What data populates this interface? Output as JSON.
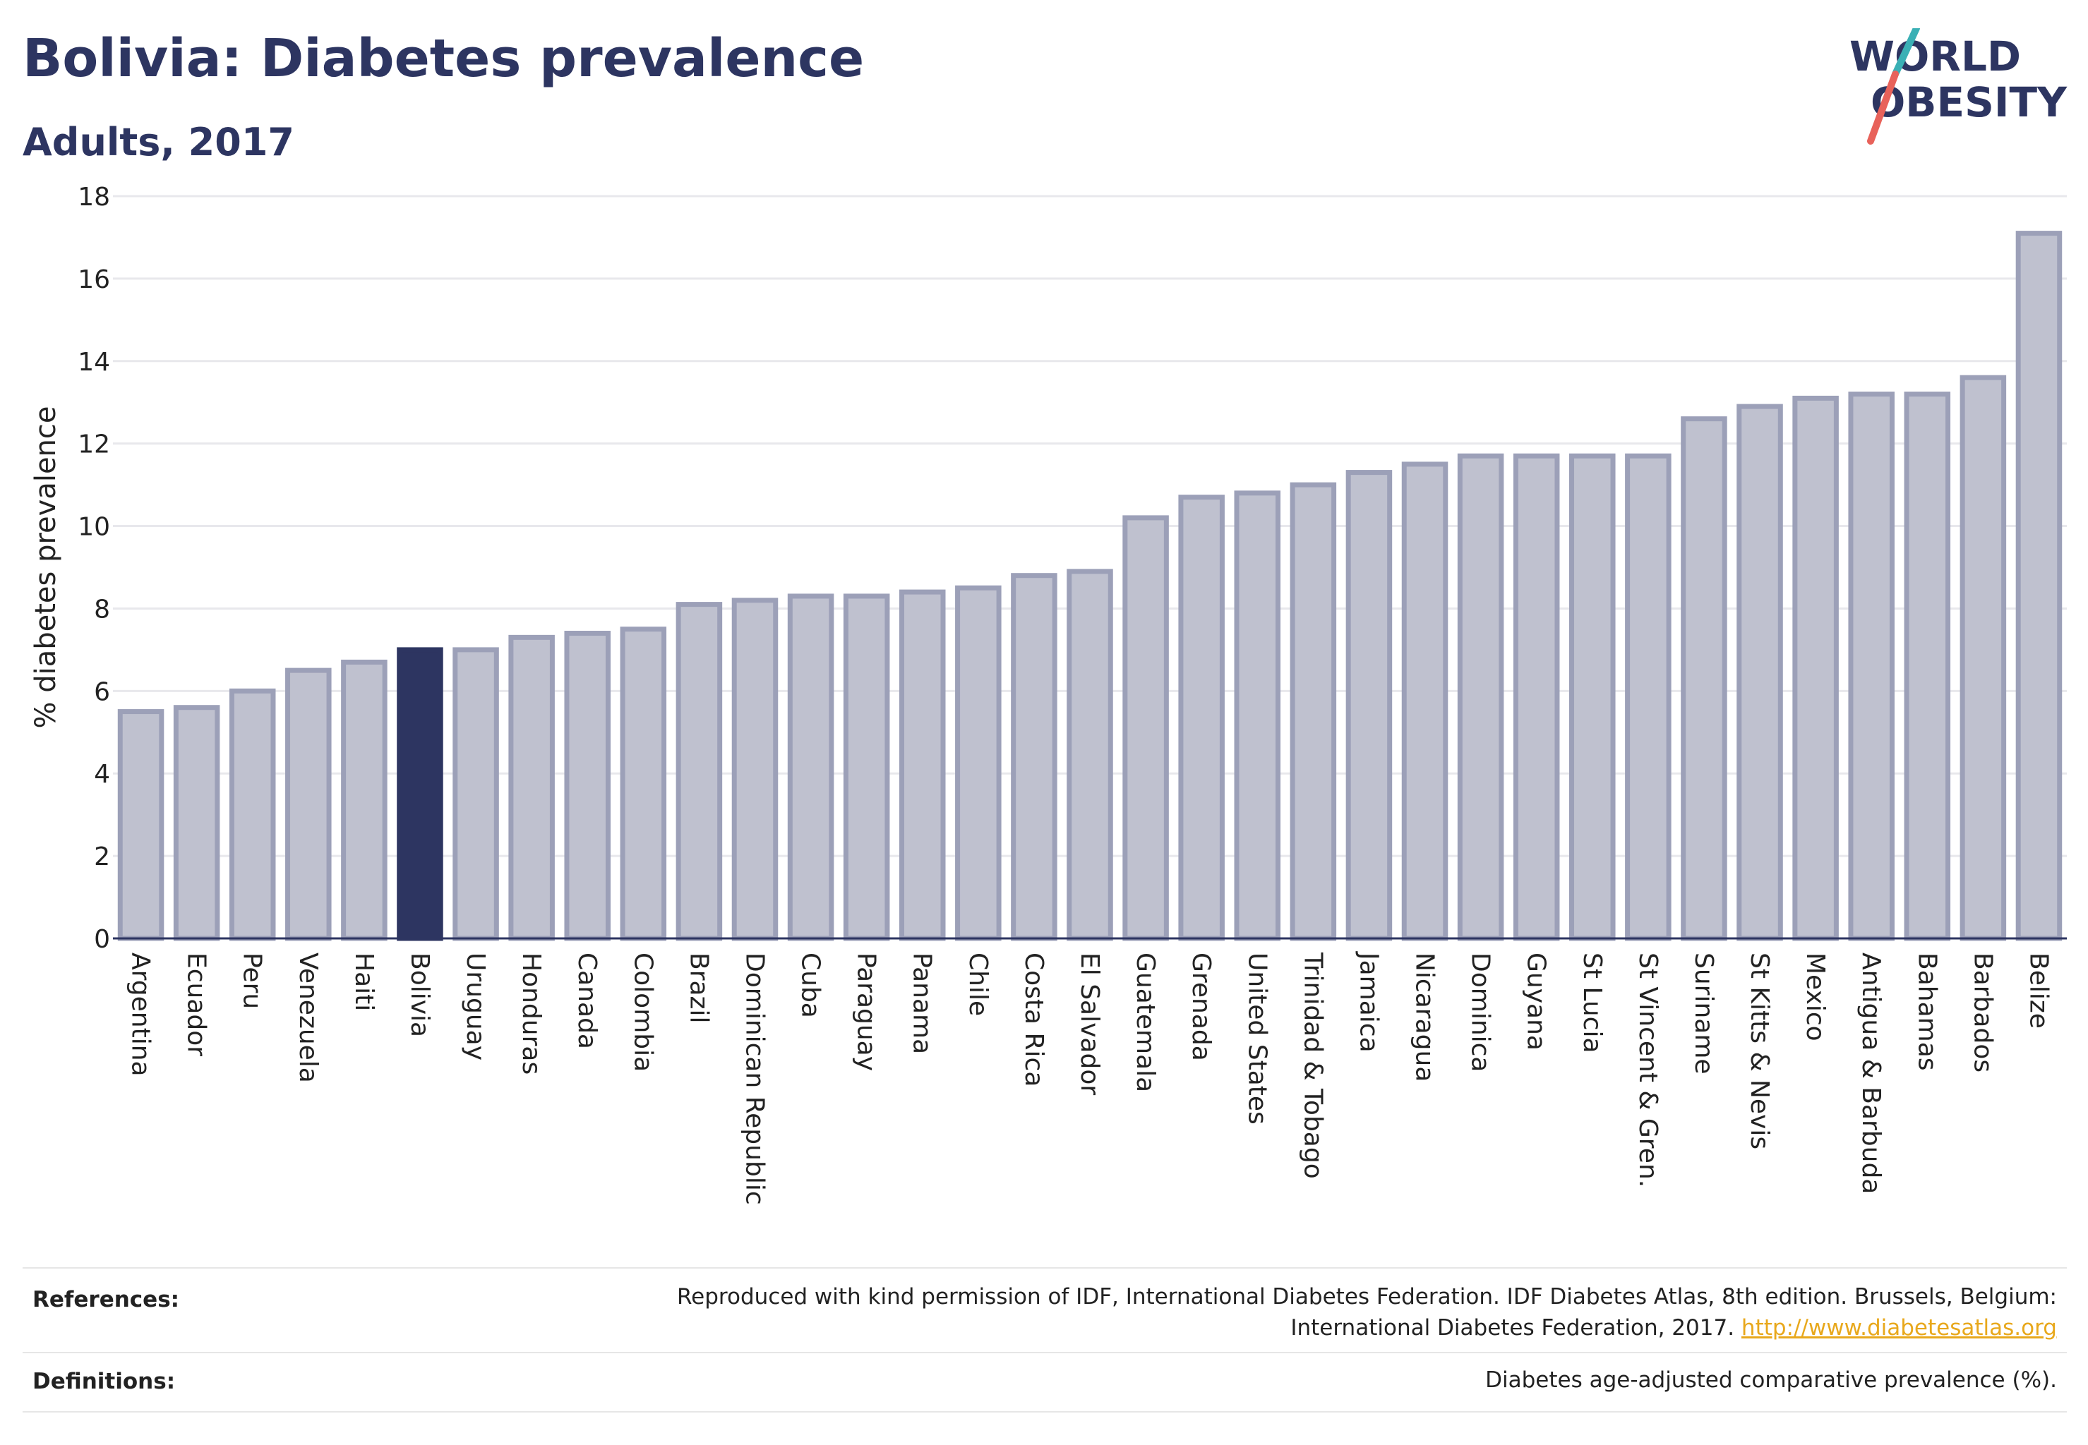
{
  "header": {
    "title": "Bolivia: Diabetes prevalence",
    "subtitle": "Adults, 2017"
  },
  "logo": {
    "line1": "WORLD",
    "line2": "OBESITY",
    "slash_color_top": "#3ab0b5",
    "slash_color_bottom": "#e8625a"
  },
  "colors": {
    "highlight": "#2d3561",
    "bar": "#bfc1cf",
    "bar_border": "#9ca0b8",
    "title": "#2d3561",
    "link": "#e8a81c"
  },
  "chart_data": {
    "type": "bar",
    "highlight": "Bolivia",
    "ylabel": "% diabetes prevalence",
    "ylim": [
      0,
      18
    ],
    "yticks": [
      0,
      2,
      4,
      6,
      8,
      10,
      12,
      14,
      16,
      18
    ],
    "grid": true,
    "categories": [
      "Argentina",
      "Ecuador",
      "Peru",
      "Venezuela",
      "Haiti",
      "Bolivia",
      "Uruguay",
      "Honduras",
      "Canada",
      "Colombia",
      "Brazil",
      "Dominican Republic",
      "Cuba",
      "Paraguay",
      "Panama",
      "Chile",
      "Costa Rica",
      "El Salvador",
      "Guatemala",
      "Grenada",
      "United States",
      "Trinidad & Tobago",
      "Jamaica",
      "Nicaragua",
      "Dominica",
      "Guyana",
      "St Lucia",
      "St Vincent & Gren.",
      "Suriname",
      "St Kitts & Nevis",
      "Mexico",
      "Antigua & Barbuda",
      "Bahamas",
      "Barbados",
      "Belize"
    ],
    "values": [
      5.5,
      5.6,
      6.0,
      6.5,
      6.7,
      7.0,
      7.0,
      7.3,
      7.4,
      7.5,
      8.1,
      8.2,
      8.3,
      8.3,
      8.4,
      8.5,
      8.8,
      8.9,
      10.2,
      10.7,
      10.8,
      11.0,
      11.3,
      11.5,
      11.7,
      11.7,
      11.7,
      11.7,
      12.6,
      12.9,
      13.1,
      13.2,
      13.2,
      13.6,
      17.1
    ]
  },
  "footer": {
    "references_label": "References:",
    "references_text": "Reproduced with kind permission of IDF, International Diabetes Federation. IDF Diabetes Atlas, 8th edition. Brussels, Belgium:",
    "references_text2": "International Diabetes Federation, 2017.",
    "references_link": "http://www.diabetesatlas.org",
    "definitions_label": "Definitions:",
    "definitions_text": "Diabetes age-adjusted comparative prevalence (%)."
  }
}
